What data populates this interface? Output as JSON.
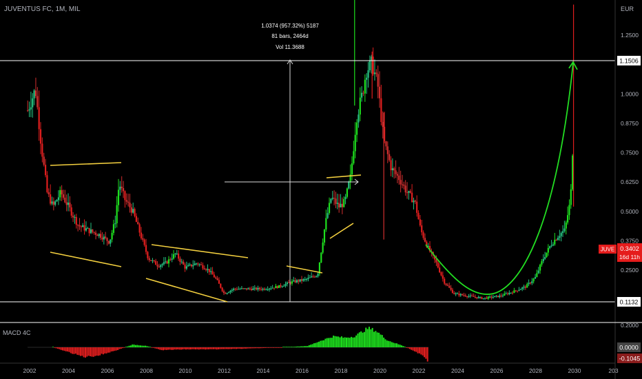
{
  "header": {
    "symbol_title": "JUVENTUS FC, 1M, MIL"
  },
  "measure_tooltip": {
    "line1": "1.0374 (957.32%) 5187",
    "line2": "81 bars, 2464d",
    "line3": "Vol 11.3688"
  },
  "price_axis": {
    "currency": "EUR",
    "ticks": [
      "1.2500",
      "1.0000",
      "0.8750",
      "0.7500",
      "0.6250",
      "0.5000",
      "0.3750",
      "0.2500"
    ],
    "level_high_label": "1.1506",
    "level_low_label": "0.1132",
    "current_symbol": "JUVE",
    "current_price": "0.3402",
    "countdown": "16d 11h"
  },
  "macd_panel": {
    "title": "MACD 4C",
    "top_tick": "0.2000",
    "zero_label": "0.0000",
    "value_label": "-0.1045"
  },
  "time_axis": {
    "ticks": [
      "2002",
      "2004",
      "2006",
      "2008",
      "2010",
      "2012",
      "2014",
      "2016",
      "2018",
      "2020",
      "2022",
      "2024",
      "2026",
      "2028",
      "2030",
      "203"
    ]
  },
  "colors": {
    "up": "#26c281",
    "down": "#d32f2f",
    "bright_green": "#1ee01e",
    "bright_red": "#e01e1e",
    "trendline": "#f4d03f",
    "projection": "#22dd22",
    "level_line": "#ffffff",
    "axis_text": "#b2b5be",
    "price_badge": "#e51c1c"
  },
  "chart_data": {
    "type": "candlestick",
    "title": "",
    "y_unit": "EUR",
    "x_range": [
      2001.8,
      2031.5
    ],
    "ylim": [
      0.15,
      1.3
    ],
    "key_levels": [
      1.1506,
      0.1132
    ],
    "last_price": 0.3402,
    "anchors": [
      [
        2001.9,
        0.93
      ],
      [
        2002.3,
        1.02
      ],
      [
        2002.6,
        0.78
      ],
      [
        2002.9,
        0.58
      ],
      [
        2003.2,
        0.52
      ],
      [
        2003.6,
        0.58
      ],
      [
        2004.0,
        0.52
      ],
      [
        2004.5,
        0.44
      ],
      [
        2005.0,
        0.42
      ],
      [
        2005.6,
        0.4
      ],
      [
        2006.1,
        0.37
      ],
      [
        2006.4,
        0.46
      ],
      [
        2006.6,
        0.62
      ],
      [
        2006.9,
        0.55
      ],
      [
        2007.3,
        0.5
      ],
      [
        2007.7,
        0.4
      ],
      [
        2008.1,
        0.3
      ],
      [
        2008.6,
        0.27
      ],
      [
        2009.0,
        0.28
      ],
      [
        2009.5,
        0.32
      ],
      [
        2010.0,
        0.26
      ],
      [
        2010.6,
        0.28
      ],
      [
        2011.2,
        0.25
      ],
      [
        2011.6,
        0.21
      ],
      [
        2012.0,
        0.15
      ],
      [
        2012.5,
        0.17
      ],
      [
        2013.2,
        0.17
      ],
      [
        2014.0,
        0.17
      ],
      [
        2014.8,
        0.18
      ],
      [
        2015.5,
        0.2
      ],
      [
        2016.2,
        0.21
      ],
      [
        2016.8,
        0.23
      ],
      [
        2017.2,
        0.45
      ],
      [
        2017.5,
        0.56
      ],
      [
        2017.9,
        0.52
      ],
      [
        2018.2,
        0.54
      ],
      [
        2018.5,
        0.65
      ],
      [
        2018.8,
        0.9
      ],
      [
        2019.1,
        1.0
      ],
      [
        2019.3,
        1.1
      ],
      [
        2019.6,
        1.13
      ],
      [
        2019.9,
        1.03
      ],
      [
        2020.2,
        0.8
      ],
      [
        2020.6,
        0.68
      ],
      [
        2021.0,
        0.64
      ],
      [
        2021.4,
        0.58
      ],
      [
        2021.8,
        0.54
      ],
      [
        2022.1,
        0.42
      ],
      [
        2022.5,
        0.34
      ],
      [
        2022.9,
        0.28
      ],
      [
        2023.3,
        0.2
      ],
      [
        2023.8,
        0.15
      ],
      [
        2024.5,
        0.14
      ],
      [
        2025.3,
        0.13
      ],
      [
        2026.2,
        0.14
      ],
      [
        2026.9,
        0.16
      ],
      [
        2027.5,
        0.18
      ],
      [
        2028.0,
        0.22
      ],
      [
        2028.4,
        0.3
      ],
      [
        2028.8,
        0.36
      ],
      [
        2029.2,
        0.4
      ],
      [
        2029.5,
        0.42
      ],
      [
        2029.8,
        0.55
      ],
      [
        2029.95,
        0.86
      ]
    ],
    "macd_histogram": [
      [
        2004.8,
        -0.07
      ],
      [
        2005.5,
        -0.06
      ],
      [
        2006.5,
        -0.02
      ],
      [
        2007.3,
        0.02
      ],
      [
        2008.0,
        0.01
      ],
      [
        2008.8,
        -0.02
      ],
      [
        2010.0,
        -0.015
      ],
      [
        2011.5,
        -0.015
      ],
      [
        2013.0,
        -0.01
      ],
      [
        2015.0,
        0.0
      ],
      [
        2016.3,
        0.01
      ],
      [
        2017.0,
        0.05
      ],
      [
        2017.6,
        0.08
      ],
      [
        2018.2,
        0.07
      ],
      [
        2018.7,
        0.08
      ],
      [
        2019.4,
        0.14
      ],
      [
        2019.8,
        0.12
      ],
      [
        2020.4,
        0.05
      ],
      [
        2021.2,
        0.01
      ],
      [
        2021.8,
        -0.03
      ],
      [
        2022.2,
        -0.06
      ],
      [
        2022.5,
        -0.1045
      ]
    ]
  }
}
